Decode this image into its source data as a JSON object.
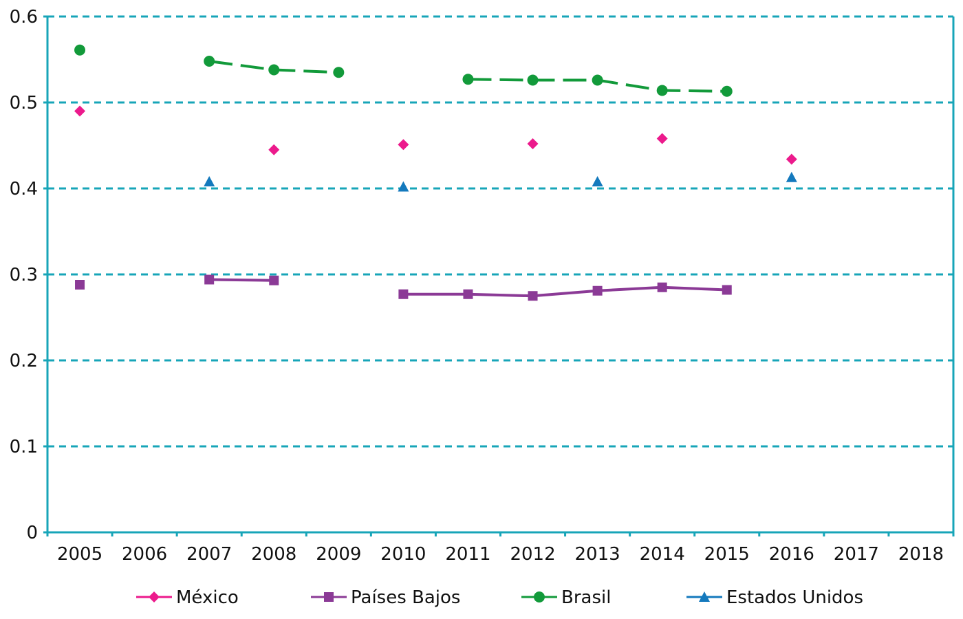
{
  "chart_data": {
    "type": "line",
    "title": "",
    "xlabel": "",
    "ylabel": "",
    "categories": [
      "2005",
      "2006",
      "2007",
      "2008",
      "2009",
      "2010",
      "2011",
      "2012",
      "2013",
      "2014",
      "2015",
      "2016",
      "2017",
      "2018"
    ],
    "ylim": [
      0,
      0.6
    ],
    "yticks": [
      "0",
      "0.1",
      "0.2",
      "0.3",
      "0.4",
      "0.5",
      "0.6"
    ],
    "grid": true,
    "legend_position": "bottom",
    "axis_color": "#17A5B8",
    "grid_color": "#17A5B8",
    "series": [
      {
        "name": "México",
        "color": "#EC1A8C",
        "marker": "diamond",
        "line": "none",
        "values": [
          0.49,
          null,
          null,
          0.445,
          null,
          0.451,
          null,
          0.452,
          null,
          0.458,
          null,
          0.434,
          null,
          null
        ]
      },
      {
        "name": "Países Bajos",
        "color": "#8B3A96",
        "marker": "square",
        "line": "solid",
        "values": [
          0.288,
          null,
          0.294,
          0.293,
          null,
          0.277,
          0.277,
          0.275,
          0.281,
          0.285,
          0.282,
          null,
          null,
          null
        ]
      },
      {
        "name": "Brasil",
        "color": "#129A3A",
        "marker": "circle",
        "line": "dashed",
        "values": [
          0.561,
          null,
          0.548,
          0.538,
          0.535,
          null,
          0.527,
          0.526,
          0.526,
          0.514,
          0.513,
          null,
          null,
          null
        ]
      },
      {
        "name": "Estados Unidos",
        "color": "#1479BD",
        "marker": "triangle",
        "line": "none",
        "values": [
          null,
          null,
          0.408,
          null,
          null,
          0.402,
          null,
          null,
          0.408,
          null,
          null,
          0.413,
          null,
          null
        ]
      }
    ]
  }
}
